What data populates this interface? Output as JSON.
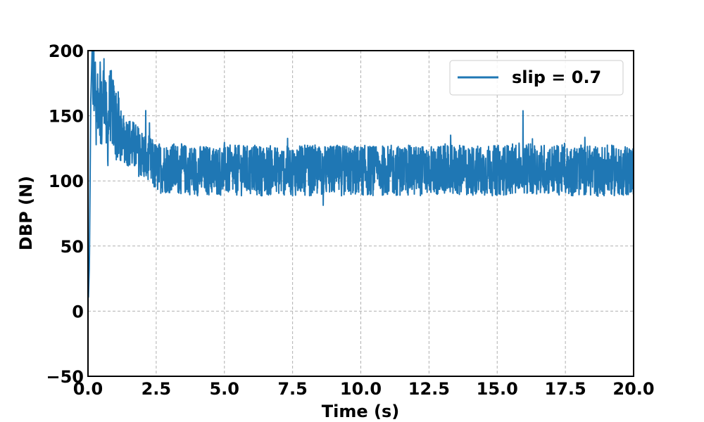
{
  "chart_data": {
    "type": "line",
    "title": "",
    "xlabel": "Time (s)",
    "ylabel": "DBP (N)",
    "xlim": [
      0,
      20
    ],
    "ylim": [
      -50,
      200
    ],
    "xticks": [
      0,
      2.5,
      5,
      7.5,
      10,
      12.5,
      15,
      17.5,
      20
    ],
    "xtick_labels": [
      "0.0",
      "2.5",
      "5.0",
      "7.5",
      "10.0",
      "12.5",
      "15.0",
      "17.5",
      "20.0"
    ],
    "yticks": [
      -50,
      0,
      50,
      100,
      150,
      200
    ],
    "ytick_labels": [
      "−50",
      "0",
      "50",
      "100",
      "150",
      "200"
    ],
    "grid": true,
    "legend_position": "top-right",
    "series": [
      {
        "name": "slip = 0.7",
        "color": "#1f77b4",
        "noise_band": [
          75,
          140
        ],
        "x": [
          0,
          0.05,
          0.1,
          0.15,
          0.2,
          0.25,
          0.3,
          0.4,
          0.5,
          0.6,
          0.7,
          0.8,
          1.0,
          1.2,
          1.5,
          2.0,
          2.5,
          3.0,
          4.0,
          5.0,
          6.0,
          7.5,
          10.0,
          12.5,
          15.0,
          16.0,
          17.5,
          20.0
        ],
        "y": [
          0,
          35,
          160,
          200,
          175,
          190,
          140,
          170,
          150,
          175,
          130,
          160,
          145,
          135,
          130,
          120,
          110,
          110,
          108,
          108,
          108,
          108,
          108,
          108,
          108,
          110,
          108,
          108
        ]
      }
    ]
  }
}
